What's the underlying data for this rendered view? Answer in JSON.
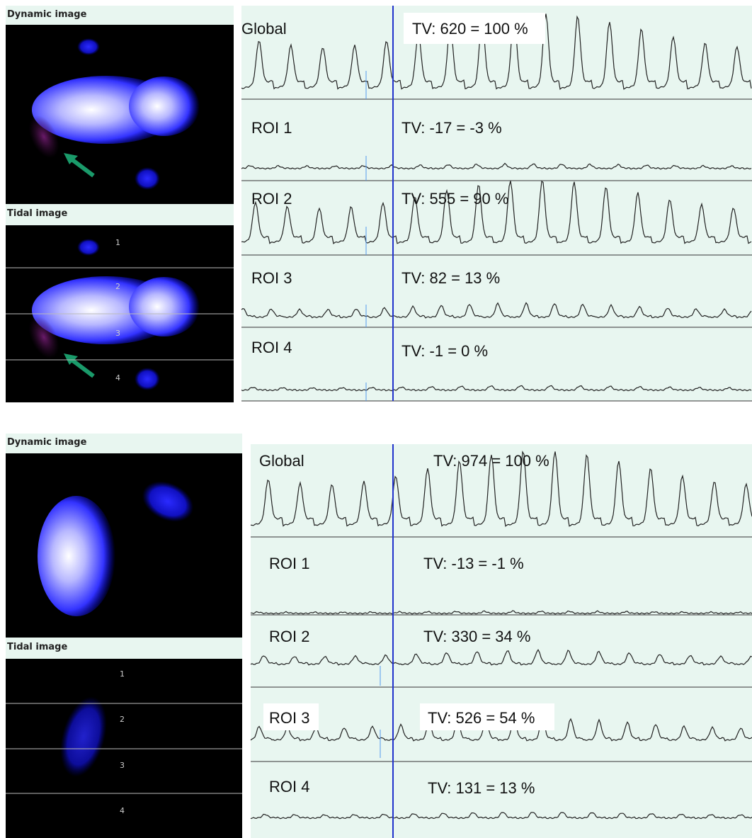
{
  "panels": [
    {
      "dynamic_label": "Dynamic image",
      "tidal_label": "Tidal image",
      "roi_numbers": [
        "1",
        "2",
        "3",
        "4"
      ],
      "traces": [
        {
          "label": "Global",
          "tv": "TV: 620 = 100 %"
        },
        {
          "label": "ROI 1",
          "tv": "TV: -17 = -3 %"
        },
        {
          "label": "ROI 2",
          "tv": "TV: 555 = 90 %"
        },
        {
          "label": "ROI 3",
          "tv": "TV: 82 = 13 %"
        },
        {
          "label": "ROI 4",
          "tv": "TV: -1 = 0 %"
        }
      ]
    },
    {
      "dynamic_label": "Dynamic image",
      "tidal_label": "Tidal image",
      "roi_numbers": [
        "1",
        "2",
        "3",
        "4"
      ],
      "traces": [
        {
          "label": "Global",
          "tv": "TV: 974 = 100 %"
        },
        {
          "label": "ROI 1",
          "tv": "TV: -13 = -1 %"
        },
        {
          "label": "ROI 2",
          "tv": "TV: 330 = 34 %"
        },
        {
          "label": "ROI 3",
          "tv": "TV: 526 = 54 %"
        },
        {
          "label": "ROI 4",
          "tv": "TV: 131 = 13 %"
        }
      ]
    }
  ]
}
